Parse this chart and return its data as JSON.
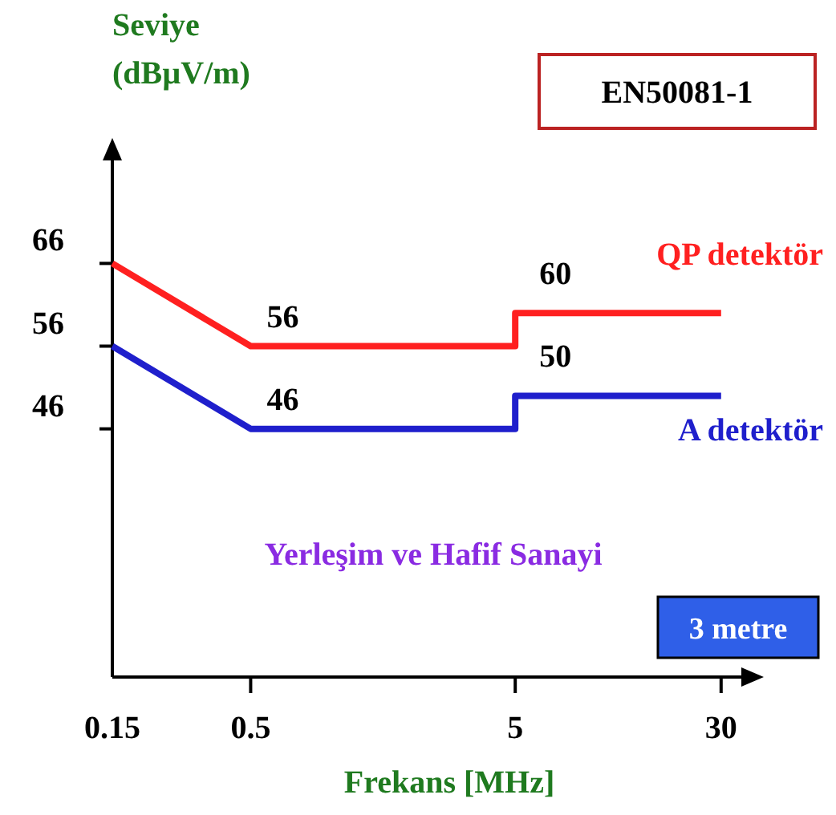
{
  "chart_data": {
    "type": "line",
    "ylabel": "Seviye\n(dBµV/m)",
    "xlabel": "Frekans [MHz]",
    "log": "x",
    "xlim": [
      0.15,
      40
    ],
    "xticks": [
      0.15,
      0.5,
      5,
      30
    ],
    "ylim": [
      16,
      80
    ],
    "yticks": [
      46,
      56,
      66
    ],
    "grid": false,
    "marker": "none",
    "line_style": "solid",
    "series": [
      {
        "name": "QP detektör",
        "color": "#ff2020",
        "x": [
          0.15,
          0.5,
          5,
          5,
          30
        ],
        "values": [
          66,
          56,
          56,
          60,
          60
        ],
        "value_labels": [
          null,
          "56",
          null,
          "60",
          null
        ]
      },
      {
        "name": "A detektör",
        "color": "#1f1fcc",
        "x": [
          0.15,
          0.5,
          5,
          5,
          30
        ],
        "values": [
          56,
          46,
          46,
          50,
          50
        ],
        "value_labels": [
          null,
          "46",
          null,
          "50",
          null
        ]
      }
    ],
    "annotations": [
      "EN50081-1",
      "Yerleşim ve Hafif Sanayi",
      "3 metre"
    ]
  }
}
